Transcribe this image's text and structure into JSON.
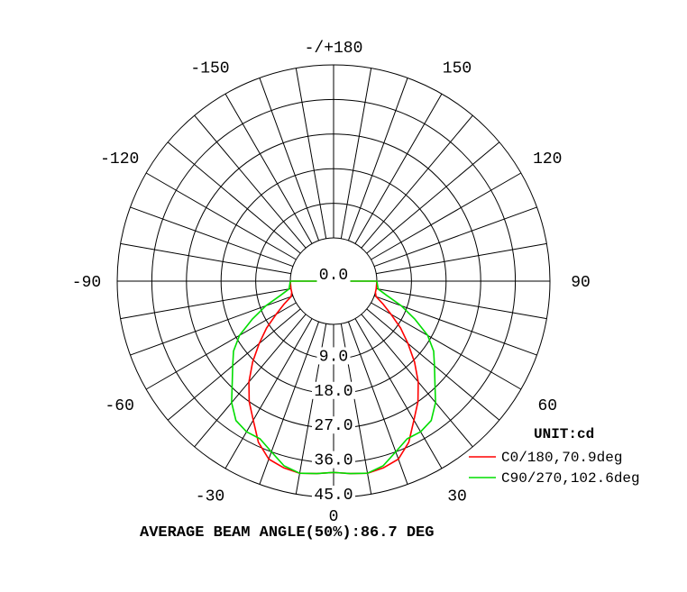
{
  "chart_data": {
    "type": "polar",
    "angle_labels": [
      {
        "angle": 180,
        "text": "-/+180"
      },
      {
        "angle": -150,
        "text": "-150"
      },
      {
        "angle": 150,
        "text": "150"
      },
      {
        "angle": -120,
        "text": "-120"
      },
      {
        "angle": 120,
        "text": "120"
      },
      {
        "angle": -90,
        "text": "-90"
      },
      {
        "angle": 90,
        "text": "90"
      },
      {
        "angle": -60,
        "text": "-60"
      },
      {
        "angle": 60,
        "text": "60"
      },
      {
        "angle": -30,
        "text": "-30"
      },
      {
        "angle": 30,
        "text": "30"
      },
      {
        "angle": 0,
        "text": "0"
      }
    ],
    "rings": [
      {
        "value": 0,
        "text": "0.0"
      },
      {
        "value": 9,
        "text": "9.0"
      },
      {
        "value": 18,
        "text": "18.0"
      },
      {
        "value": 27,
        "text": "27.0"
      },
      {
        "value": 36,
        "text": "36.0"
      },
      {
        "value": 45,
        "text": "45.0"
      }
    ],
    "r_max": 45,
    "unit_label": "UNIT:cd",
    "series": [
      {
        "name": "C0/180,70.9deg",
        "color": "#ff0000",
        "points": [
          [
            0,
            38.5
          ],
          [
            5,
            39
          ],
          [
            10,
            39.5
          ],
          [
            15,
            39
          ],
          [
            20,
            38
          ],
          [
            25,
            35
          ],
          [
            30,
            30.5
          ],
          [
            35,
            27
          ],
          [
            40,
            23
          ],
          [
            45,
            18.5
          ],
          [
            50,
            14
          ],
          [
            55,
            10
          ],
          [
            60,
            6
          ],
          [
            65,
            3
          ],
          [
            70,
            0.5
          ],
          [
            75,
            0
          ],
          [
            80,
            0
          ],
          [
            90,
            0
          ]
        ]
      },
      {
        "name": "C90/270,102.6deg",
        "color": "#00dd00",
        "points": [
          [
            0,
            38.5
          ],
          [
            5,
            39
          ],
          [
            10,
            39.5
          ],
          [
            15,
            38.5
          ],
          [
            20,
            36
          ],
          [
            25,
            34
          ],
          [
            30,
            34
          ],
          [
            35,
            33
          ],
          [
            40,
            30
          ],
          [
            45,
            26
          ],
          [
            50,
            23
          ],
          [
            55,
            20.5
          ],
          [
            60,
            17
          ],
          [
            65,
            12
          ],
          [
            70,
            7.5
          ],
          [
            75,
            3
          ],
          [
            80,
            0.5
          ],
          [
            90,
            0
          ]
        ]
      }
    ]
  },
  "caption": "AVERAGE BEAM ANGLE(50%):86.7 DEG"
}
